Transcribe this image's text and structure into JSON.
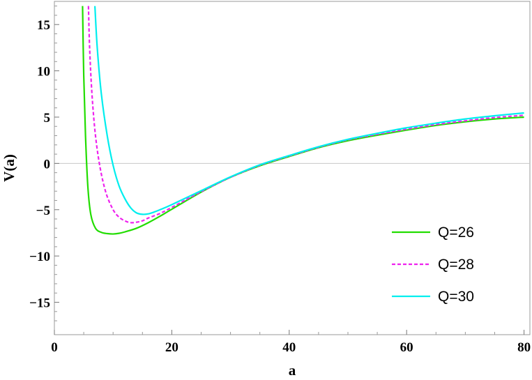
{
  "chart_data": {
    "type": "line",
    "title": "",
    "xlabel": "a",
    "ylabel": "V(a)",
    "xlim": [
      0,
      81
    ],
    "ylim": [
      -18.5,
      17.5
    ],
    "xticks": [
      0,
      20,
      40,
      60,
      80
    ],
    "xtick_labels": [
      "0",
      "20",
      "40",
      "60",
      "80"
    ],
    "yticks": [
      -15,
      -10,
      -5,
      0,
      5,
      10,
      15
    ],
    "ytick_labels": [
      "−15",
      "−10",
      "−5",
      "0",
      "5",
      "10",
      "15"
    ],
    "grid": false,
    "zero_line": true,
    "legend_position": "lower-right",
    "series": [
      {
        "name": "Q=26",
        "color": "#22dd00",
        "dash": "solid",
        "points": [
          [
            4.8,
            17.0
          ],
          [
            5.0,
            9.5
          ],
          [
            5.3,
            3.0
          ],
          [
            5.7,
            -2.5
          ],
          [
            6.2,
            -5.5
          ],
          [
            7.0,
            -7.0
          ],
          [
            8.0,
            -7.45
          ],
          [
            9.0,
            -7.58
          ],
          [
            10.0,
            -7.62
          ],
          [
            11.0,
            -7.55
          ],
          [
            12.0,
            -7.4
          ],
          [
            14.0,
            -7.0
          ],
          [
            16.0,
            -6.4
          ],
          [
            18.0,
            -5.7
          ],
          [
            20.0,
            -4.95
          ],
          [
            25.0,
            -3.1
          ],
          [
            30.0,
            -1.5
          ],
          [
            35.0,
            -0.25
          ],
          [
            40.0,
            0.75
          ],
          [
            45.0,
            1.7
          ],
          [
            50.0,
            2.45
          ],
          [
            55.0,
            3.05
          ],
          [
            60.0,
            3.6
          ],
          [
            65.0,
            4.1
          ],
          [
            70.0,
            4.5
          ],
          [
            75.0,
            4.8
          ],
          [
            80.0,
            5.0
          ]
        ]
      },
      {
        "name": "Q=28",
        "color": "#ee22ee",
        "dash": "dashed",
        "points": [
          [
            5.8,
            17.0
          ],
          [
            6.0,
            12.5
          ],
          [
            6.4,
            7.5
          ],
          [
            7.0,
            3.0
          ],
          [
            7.8,
            -0.5
          ],
          [
            8.8,
            -3.2
          ],
          [
            10.0,
            -5.0
          ],
          [
            11.0,
            -5.8
          ],
          [
            12.0,
            -6.2
          ],
          [
            13.0,
            -6.4
          ],
          [
            14.0,
            -6.35
          ],
          [
            15.0,
            -6.2
          ],
          [
            16.0,
            -5.9
          ],
          [
            18.0,
            -5.4
          ],
          [
            20.0,
            -4.75
          ],
          [
            25.0,
            -3.05
          ],
          [
            30.0,
            -1.5
          ],
          [
            35.0,
            -0.2
          ],
          [
            40.0,
            0.8
          ],
          [
            45.0,
            1.75
          ],
          [
            50.0,
            2.55
          ],
          [
            55.0,
            3.15
          ],
          [
            60.0,
            3.7
          ],
          [
            65.0,
            4.2
          ],
          [
            70.0,
            4.6
          ],
          [
            75.0,
            4.95
          ],
          [
            80.0,
            5.2
          ]
        ]
      },
      {
        "name": "Q=30",
        "color": "#00eeee",
        "dash": "solid",
        "points": [
          [
            6.9,
            17.0
          ],
          [
            7.3,
            12.5
          ],
          [
            8.0,
            7.5
          ],
          [
            9.0,
            3.0
          ],
          [
            10.0,
            -0.2
          ],
          [
            11.0,
            -2.4
          ],
          [
            12.0,
            -3.8
          ],
          [
            13.0,
            -4.8
          ],
          [
            14.0,
            -5.35
          ],
          [
            15.0,
            -5.5
          ],
          [
            16.0,
            -5.45
          ],
          [
            17.0,
            -5.25
          ],
          [
            18.0,
            -5.0
          ],
          [
            20.0,
            -4.45
          ],
          [
            25.0,
            -2.95
          ],
          [
            30.0,
            -1.45
          ],
          [
            35.0,
            -0.15
          ],
          [
            40.0,
            0.85
          ],
          [
            45.0,
            1.8
          ],
          [
            50.0,
            2.6
          ],
          [
            55.0,
            3.25
          ],
          [
            60.0,
            3.85
          ],
          [
            65.0,
            4.35
          ],
          [
            70.0,
            4.8
          ],
          [
            75.0,
            5.15
          ],
          [
            80.0,
            5.45
          ]
        ]
      }
    ]
  }
}
